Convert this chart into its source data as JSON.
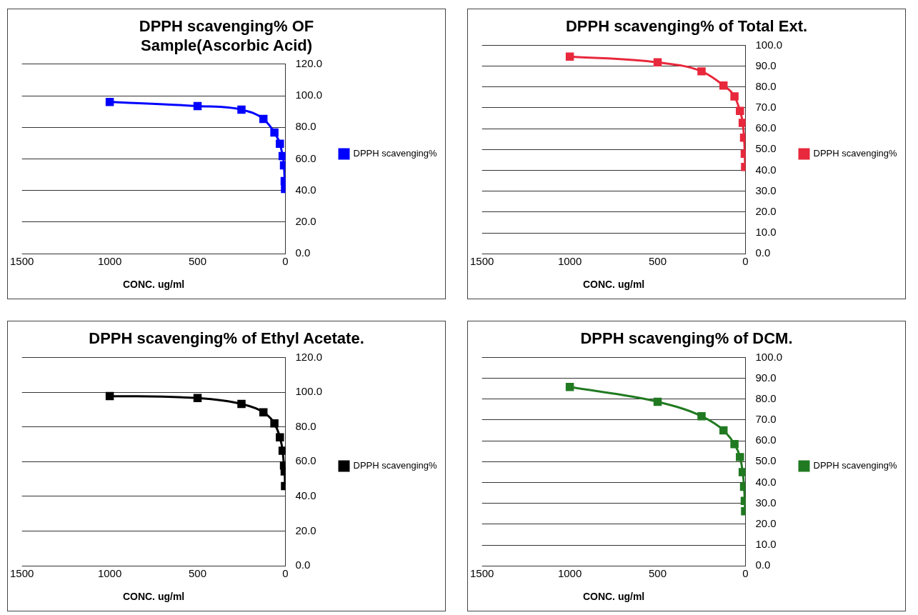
{
  "chart_data": [
    {
      "type": "line",
      "title": "DPPH scavenging% OF Sample(Ascorbic Acid)",
      "xlabel": "CONC. ug/ml",
      "x": [
        1000,
        500,
        250,
        125,
        62.5,
        31.25,
        15.6,
        7.8,
        3.9,
        2
      ],
      "series": [
        {
          "name": "DPPH scavenging%",
          "color": "#0000ff",
          "values": [
            96.1,
            93.5,
            91.2,
            85.3,
            76.7,
            69.6,
            61.8,
            55.9,
            46,
            41
          ]
        }
      ],
      "xlim": [
        1500,
        0
      ],
      "xticks": [
        1500,
        1000,
        500,
        0
      ],
      "ylim": [
        0,
        120
      ],
      "yticks": [
        {
          "value": 0,
          "label": "0.0"
        },
        {
          "value": 20,
          "label": "20.0"
        },
        {
          "value": 40,
          "label": "40.0"
        },
        {
          "value": 60,
          "label": "60.0"
        },
        {
          "value": 80,
          "label": "80.0"
        },
        {
          "value": 100,
          "label": "100.0"
        },
        {
          "value": 120,
          "label": "120.0"
        }
      ],
      "grid": "y",
      "legend": "right",
      "marker": "square",
      "line_style": "solid"
    },
    {
      "type": "line",
      "title": "DPPH scavenging% of Total Ext.",
      "xlabel": "CONC. ug/ml",
      "x": [
        1000,
        500,
        250,
        125,
        62.5,
        31.25,
        15.6,
        7.8,
        3.9,
        2
      ],
      "series": [
        {
          "name": "DPPH scavenging%",
          "color": "#e8283c",
          "values": [
            94.6,
            91.8,
            87.5,
            80.7,
            75.5,
            68.5,
            62.8,
            55.7,
            48,
            41.6
          ]
        }
      ],
      "xlim": [
        1500,
        0
      ],
      "xticks": [
        1500,
        1000,
        500,
        0
      ],
      "ylim": [
        0,
        100
      ],
      "yticks": [
        {
          "value": 0,
          "label": "0.0"
        },
        {
          "value": 10,
          "label": "10.0"
        },
        {
          "value": 20,
          "label": "20.0"
        },
        {
          "value": 30,
          "label": "30.0"
        },
        {
          "value": 40,
          "label": "40.0"
        },
        {
          "value": 50,
          "label": "50.0"
        },
        {
          "value": 60,
          "label": "60.0"
        },
        {
          "value": 70,
          "label": "70.0"
        },
        {
          "value": 80,
          "label": "80.0"
        },
        {
          "value": 90,
          "label": "90.0"
        },
        {
          "value": 100,
          "label": "100.0"
        }
      ],
      "grid": "y",
      "legend": "right",
      "marker": "square",
      "line_style": "solid"
    },
    {
      "type": "line",
      "title": "DPPH scavenging% of Ethyl Acetate.",
      "xlabel": "CONC. ug/ml",
      "x": [
        1000,
        500,
        250,
        125,
        62.5,
        31.25,
        15.6,
        7.8,
        3.9,
        2
      ],
      "series": [
        {
          "name": "DPPH scavenging%",
          "color": "#000000",
          "values": [
            97.8,
            96.6,
            93.2,
            88.4,
            82,
            74,
            66.3,
            57.8,
            54.4,
            45.9
          ]
        }
      ],
      "xlim": [
        1500,
        0
      ],
      "xticks": [
        1500,
        1000,
        500,
        0
      ],
      "ylim": [
        0,
        120
      ],
      "yticks": [
        {
          "value": 0,
          "label": "0.0"
        },
        {
          "value": 20,
          "label": "20.0"
        },
        {
          "value": 40,
          "label": "40.0"
        },
        {
          "value": 60,
          "label": "60.0"
        },
        {
          "value": 80,
          "label": "80.0"
        },
        {
          "value": 100,
          "label": "100.0"
        },
        {
          "value": 120,
          "label": "120.0"
        }
      ],
      "grid": "y",
      "legend": "right",
      "marker": "square",
      "line_style": "solid"
    },
    {
      "type": "line",
      "title": "DPPH scavenging% of DCM.",
      "xlabel": "CONC. ug/ml",
      "x": [
        1000,
        500,
        250,
        125,
        62.5,
        31.25,
        15.6,
        7.8,
        3.9,
        2
      ],
      "series": [
        {
          "name": "DPPH scavenging%",
          "color": "#217a21",
          "values": [
            85.8,
            78.7,
            71.8,
            65,
            58.4,
            52.2,
            45,
            37.9,
            31.2,
            26.2
          ]
        }
      ],
      "xlim": [
        1500,
        0
      ],
      "xticks": [
        1500,
        1000,
        500,
        0
      ],
      "ylim": [
        0,
        100
      ],
      "yticks": [
        {
          "value": 0,
          "label": "0.0"
        },
        {
          "value": 10,
          "label": "10.0"
        },
        {
          "value": 20,
          "label": "20.0"
        },
        {
          "value": 30,
          "label": "30.0"
        },
        {
          "value": 40,
          "label": "40.0"
        },
        {
          "value": 50,
          "label": "50.0"
        },
        {
          "value": 60,
          "label": "60.0"
        },
        {
          "value": 70,
          "label": "70.0"
        },
        {
          "value": 80,
          "label": "80.0"
        },
        {
          "value": 90,
          "label": "90.0"
        },
        {
          "value": 100,
          "label": "100.0"
        }
      ],
      "grid": "y",
      "legend": "right",
      "marker": "square",
      "line_style": "solid"
    }
  ]
}
